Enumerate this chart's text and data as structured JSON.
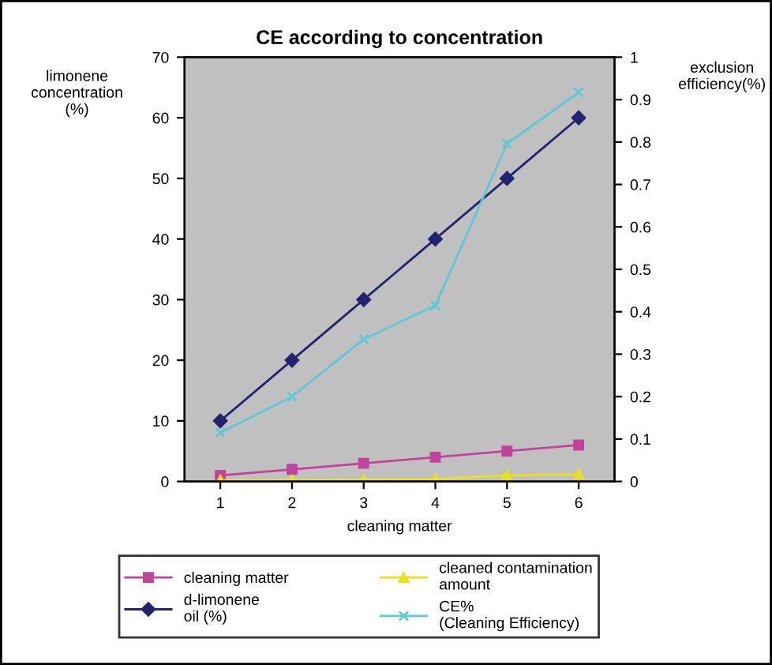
{
  "chart_data": {
    "type": "line",
    "title": "CE according to concentration",
    "xlabel": "cleaning matter",
    "ylabel": "limonene\nconcentration\n(%)",
    "y2label": "exclusion\nefficiency(%)",
    "categories": [
      "1",
      "2",
      "3",
      "4",
      "5",
      "6"
    ],
    "series": [
      {
        "name": "cleaning matter",
        "color": "#c0449c",
        "marker": "square",
        "values": [
          1,
          2,
          3,
          4,
          5,
          6
        ]
      },
      {
        "name": "d-limonene\noil (%)",
        "color": "#22226e",
        "marker": "diamond",
        "values": [
          10,
          20,
          30,
          40,
          50,
          60
        ]
      },
      {
        "name": "cleaned contamination\namount",
        "color": "#e8e020",
        "marker": "triangle",
        "values": [
          0.2,
          0.2,
          0.3,
          0.4,
          1.0,
          1.2
        ]
      },
      {
        "name": "CE%\n(Cleaning Efficiency)",
        "color": "#5cc8d8",
        "marker": "cross",
        "axis": "y2",
        "values": [
          0.115,
          0.2,
          0.335,
          0.415,
          0.796,
          0.917
        ]
      }
    ],
    "ylim": [
      0,
      70
    ],
    "yticks": [
      0,
      10,
      20,
      30,
      40,
      50,
      60,
      70
    ],
    "y2lim": [
      0,
      1
    ],
    "y2ticks": [
      0,
      0.1,
      0.2,
      0.3,
      0.4,
      0.5,
      0.6,
      0.7,
      0.8,
      0.9,
      1
    ],
    "grid": false,
    "legend": "bottom"
  }
}
